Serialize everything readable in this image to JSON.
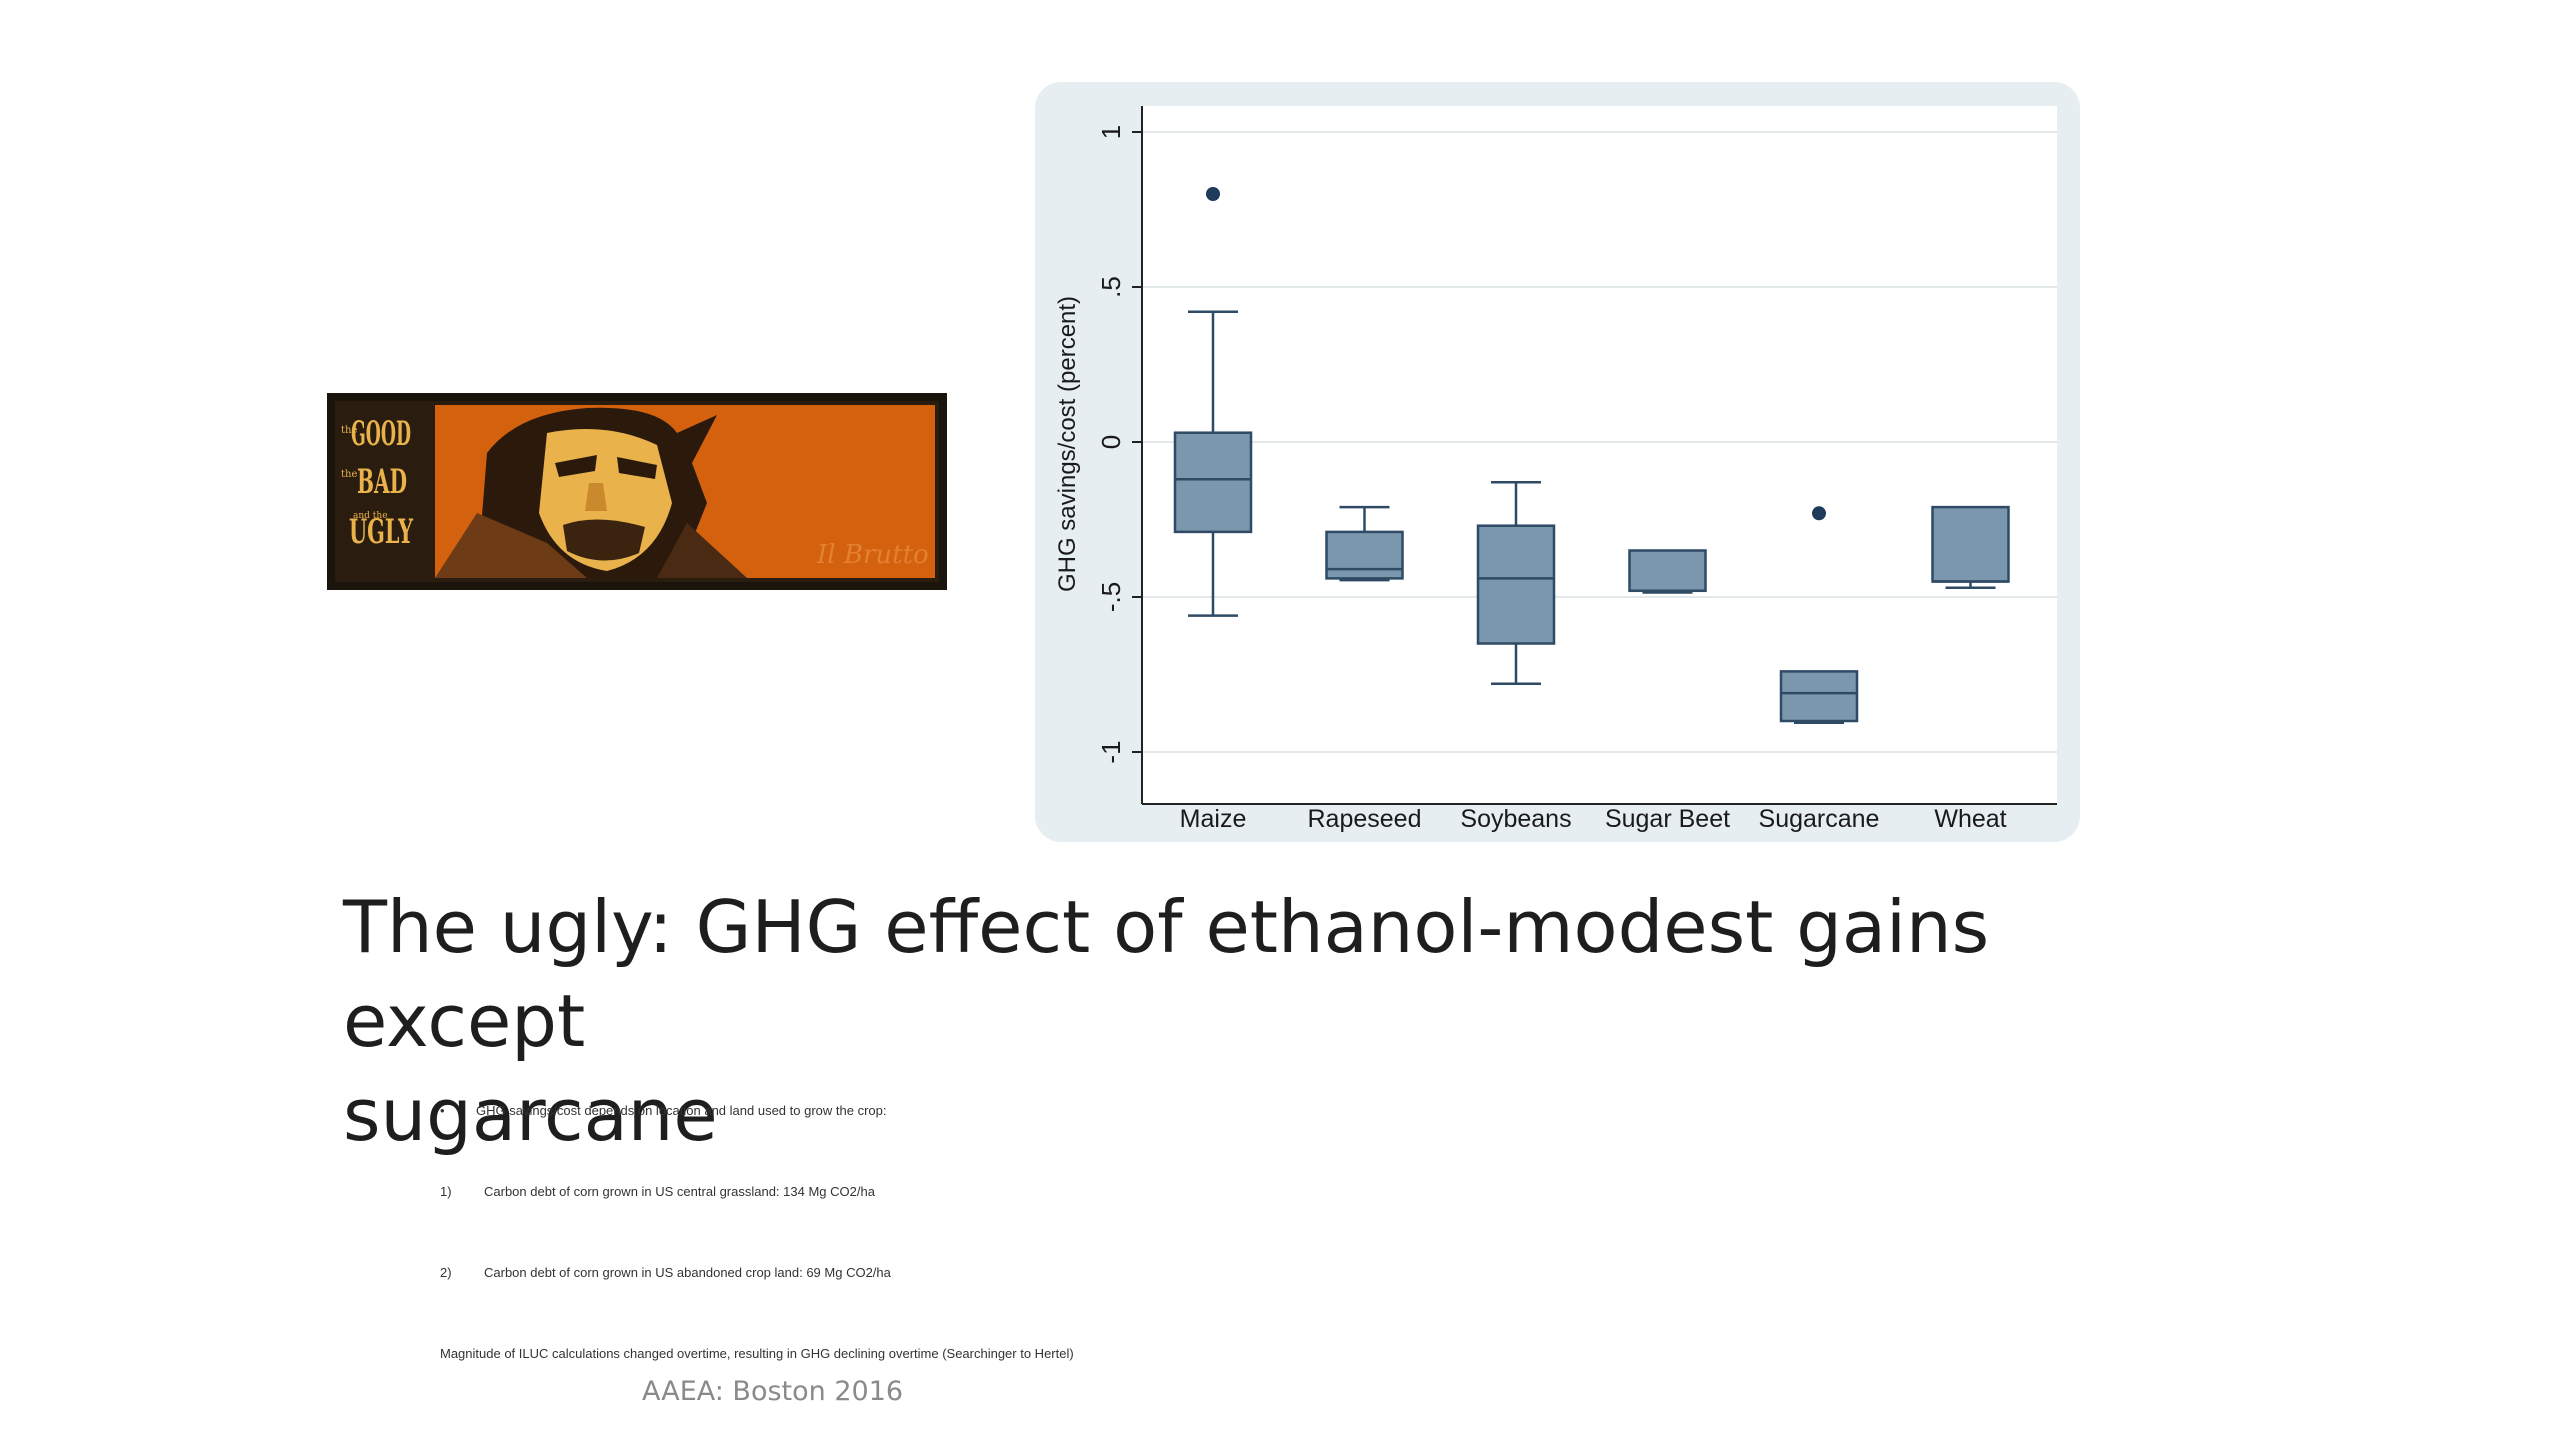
{
  "poster": {
    "title_lines": [
      "GOOD",
      "BAD",
      "UGLY"
    ],
    "small_words": [
      "the",
      "the",
      "and the"
    ],
    "signature": "Il Brutto"
  },
  "chart_data": {
    "type": "box",
    "ylabel": "GHG savings/cost (percent)",
    "ylim": [
      -1,
      1
    ],
    "yticks": [
      1,
      0.5,
      0,
      -0.5,
      -1
    ],
    "ytick_labels": [
      "1",
      ".5",
      "0",
      "-.5",
      "-1"
    ],
    "grid": true,
    "categories": [
      "Maize",
      "Rapeseed",
      "Soybeans",
      "Sugar Beet",
      "Sugarcane",
      "Wheat"
    ],
    "boxes": [
      {
        "category": "Maize",
        "whisker_low": -0.56,
        "q1": -0.29,
        "median": -0.12,
        "q3": 0.03,
        "whisker_high": 0.42,
        "outliers": [
          0.8
        ]
      },
      {
        "category": "Rapeseed",
        "whisker_low": -0.44,
        "q1": -0.44,
        "median": -0.41,
        "q3": -0.29,
        "whisker_high": -0.21,
        "outliers": []
      },
      {
        "category": "Soybeans",
        "whisker_low": -0.78,
        "q1": -0.65,
        "median": -0.44,
        "q3": -0.27,
        "whisker_high": -0.13,
        "outliers": []
      },
      {
        "category": "Sugar Beet",
        "whisker_low": -0.48,
        "q1": -0.48,
        "median": -0.48,
        "q3": -0.35,
        "whisker_high": -0.35,
        "outliers": []
      },
      {
        "category": "Sugarcane",
        "whisker_low": -0.9,
        "q1": -0.9,
        "median": -0.81,
        "q3": -0.74,
        "whisker_high": -0.74,
        "outliers": [
          -0.23
        ]
      },
      {
        "category": "Wheat",
        "whisker_low": -0.47,
        "q1": -0.45,
        "median": -0.45,
        "q3": -0.21,
        "whisker_high": -0.21,
        "outliers": []
      }
    ],
    "box_color": "#7b97ad",
    "line_color": "#2e4a64",
    "outlier_color": "#1f3a5a"
  },
  "slide": {
    "title_line1": "The ugly: GHG effect of ethanol-modest gains except",
    "title_line2": "sugarcane",
    "bullet_mark": "•",
    "bullet": "GHG savings/cost depends on location and land used to grow the crop:",
    "item1_num": "1)",
    "item1": "Carbon debt of corn grown in US central grassland: 134 Mg CO2/ha",
    "item2_num": "2)",
    "item2": "Carbon debt of corn grown in US abandoned crop land: 69 Mg CO2/ha",
    "note": "Magnitude of ILUC calculations changed overtime, resulting in GHG declining overtime (Searchinger to Hertel)",
    "footer": "AAEA: Boston 2016"
  },
  "colors": {
    "chart_panel": "#e6eef1",
    "poster_orange": "#d3610e",
    "poster_dark": "#1b140c",
    "poster_yellow": "#e9b24a"
  }
}
